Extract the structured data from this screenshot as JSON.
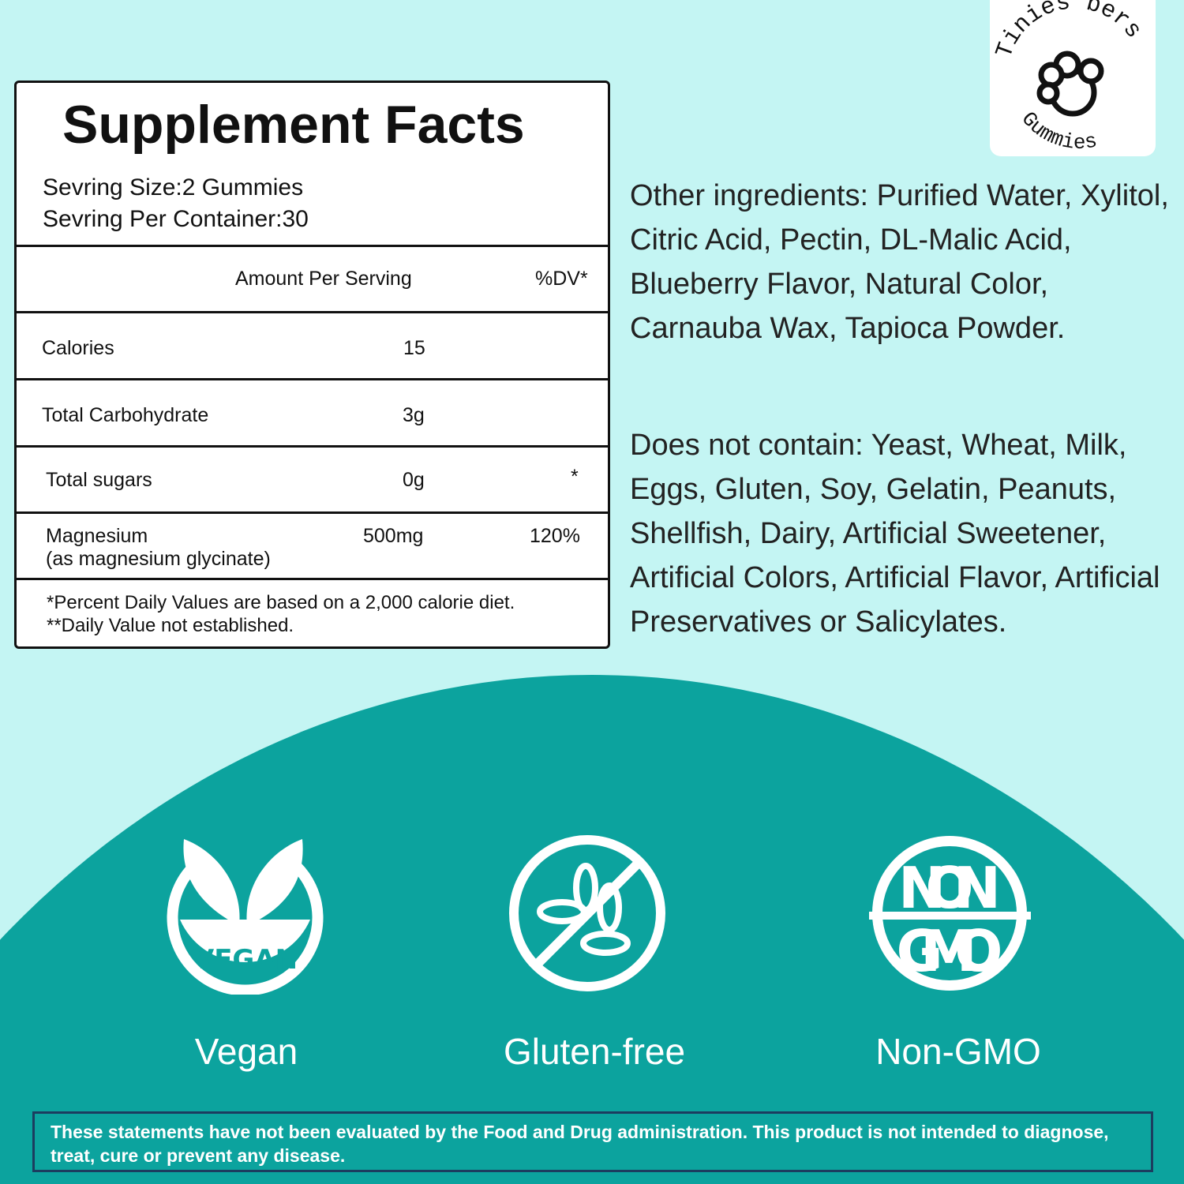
{
  "brand": {
    "top": "Tinies bers",
    "bottom": "Gummies"
  },
  "facts": {
    "title": "Supplement Facts",
    "serving_size": "Sevring Size:2 Gummies",
    "servings_per_container": "Sevring Per Container:30",
    "header": {
      "amount": "Amount Per Serving",
      "dv": "%DV*"
    },
    "rows": [
      {
        "name": "Calories",
        "amount": "15",
        "dv": ""
      },
      {
        "name": "Total Carbohydrate",
        "amount": "3g",
        "dv": ""
      },
      {
        "name": "Total sugars",
        "amount": "0g",
        "dv": "*"
      },
      {
        "name": "Magnesium",
        "sub": "(as magnesium glycinate)",
        "amount": "500mg",
        "dv": "120%"
      }
    ],
    "footnote1": "*Percent Daily Values are based on a 2,000 calorie diet.",
    "footnote2": "**Daily Value not established."
  },
  "other_ingredients": "Other ingredients: Purified Water, Xylitol, Citric Acid, Pectin, DL-Malic Acid, Blueberry Flavor, Natural Color, Carnauba Wax, Tapioca Powder.",
  "does_not_contain": "Does not contain: Yeast, Wheat, Milk, Eggs, Gluten, Soy, Gelatin, Peanuts, Shellfish, Dairy, Artificial Sweetener, Artificial Colors, Artificial Flavor, Artificial Preservatives or Salicylates.",
  "badges": [
    {
      "icon": "vegan-leaf-icon",
      "inner": "VEGAN",
      "label": "Vegan"
    },
    {
      "icon": "gluten-free-icon",
      "label": "Gluten-free"
    },
    {
      "icon": "non-gmo-icon",
      "inner1": "NON",
      "inner2": "GMO",
      "label": "Non-GMO"
    }
  ],
  "disclaimer": "These statements have not been evaluated by the Food and Drug administration. This product is not intended to diagnose, treat, cure or prevent any disease.",
  "colors": {
    "background": "#c4f5f3",
    "teal": "#0ca39e",
    "border": "#1c3d5f"
  }
}
